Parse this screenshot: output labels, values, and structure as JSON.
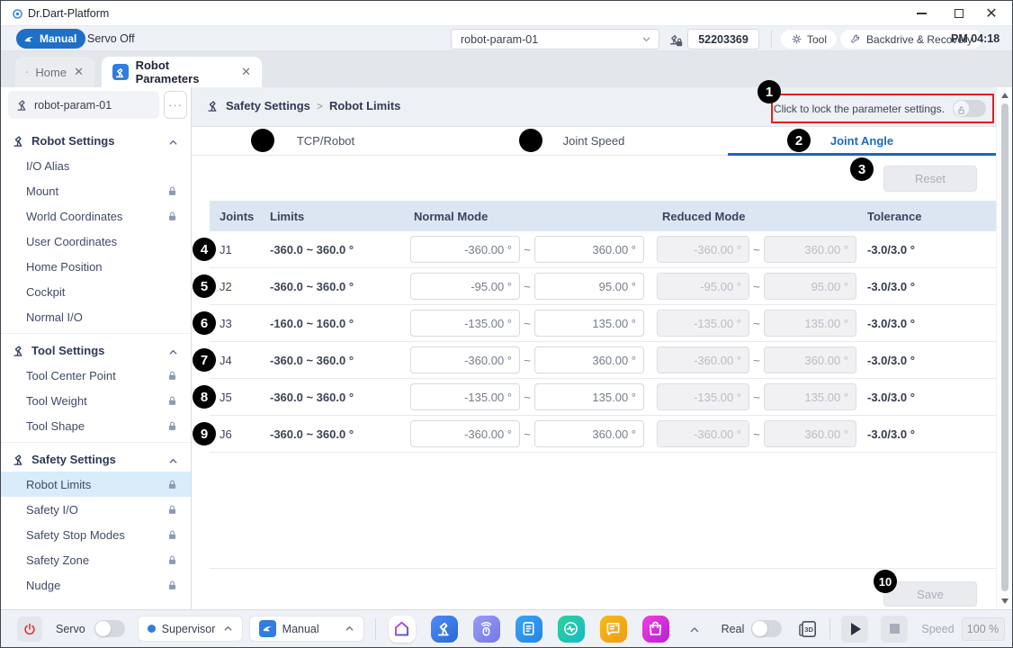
{
  "window": {
    "title": "Dr.Dart-Platform"
  },
  "toolbar": {
    "manual_label": "Manual",
    "servo_status": "Servo Off",
    "param_select": "robot-param-01",
    "serial": "52203369",
    "tool_label": "Tool",
    "backdrive_label": "Backdrive & Recovery",
    "time": "PM 04:18"
  },
  "app_tabs": [
    {
      "label": "Home",
      "active": false
    },
    {
      "label": "Robot Parameters",
      "active": true
    }
  ],
  "sidebar": {
    "param_name": "robot-param-01",
    "sections": [
      {
        "title": "Robot Settings",
        "items": [
          {
            "label": "I/O Alias",
            "locked": false,
            "selected": false
          },
          {
            "label": "Mount",
            "locked": true,
            "selected": false
          },
          {
            "label": "World Coordinates",
            "locked": true,
            "selected": false
          },
          {
            "label": "User Coordinates",
            "locked": false,
            "selected": false
          },
          {
            "label": "Home Position",
            "locked": false,
            "selected": false
          },
          {
            "label": "Cockpit",
            "locked": false,
            "selected": false
          },
          {
            "label": "Normal I/O",
            "locked": false,
            "selected": false
          }
        ]
      },
      {
        "title": "Tool Settings",
        "items": [
          {
            "label": "Tool Center Point",
            "locked": true,
            "selected": false
          },
          {
            "label": "Tool Weight",
            "locked": true,
            "selected": false
          },
          {
            "label": "Tool Shape",
            "locked": true,
            "selected": false
          }
        ]
      },
      {
        "title": "Safety Settings",
        "items": [
          {
            "label": "Robot Limits",
            "locked": true,
            "selected": true
          },
          {
            "label": "Safety I/O",
            "locked": true,
            "selected": false
          },
          {
            "label": "Safety Stop Modes",
            "locked": true,
            "selected": false
          },
          {
            "label": "Safety Zone",
            "locked": true,
            "selected": false
          },
          {
            "label": "Nudge",
            "locked": true,
            "selected": false
          }
        ]
      }
    ]
  },
  "main": {
    "breadcrumb": {
      "section": "Safety Settings",
      "separator": ">",
      "page": "Robot Limits"
    },
    "lock_callout": "Click to lock the parameter settings.",
    "tabs": [
      "TCP/Robot",
      "Joint Speed",
      "Joint Angle"
    ],
    "active_tab_index": 2,
    "reset_label": "Reset",
    "save_label": "Save",
    "table": {
      "headers": [
        "Joints",
        "Limits",
        "Normal Mode",
        "Reduced Mode",
        "Tolerance"
      ],
      "range_separator": "~",
      "rows": [
        {
          "joint": "J1",
          "limits": "-360.0 ~ 360.0 °",
          "normal_min": "-360.00 °",
          "normal_max": "360.00 °",
          "reduced_min": "-360.00 °",
          "reduced_max": "360.00 °",
          "tolerance": "-3.0/3.0 °"
        },
        {
          "joint": "J2",
          "limits": "-360.0 ~ 360.0 °",
          "normal_min": "-95.00 °",
          "normal_max": "95.00 °",
          "reduced_min": "-95.00 °",
          "reduced_max": "95.00 °",
          "tolerance": "-3.0/3.0 °"
        },
        {
          "joint": "J3",
          "limits": "-160.0 ~ 160.0 °",
          "normal_min": "-135.00 °",
          "normal_max": "135.00 °",
          "reduced_min": "-135.00 °",
          "reduced_max": "135.00 °",
          "tolerance": "-3.0/3.0 °"
        },
        {
          "joint": "J4",
          "limits": "-360.0 ~ 360.0 °",
          "normal_min": "-360.00 °",
          "normal_max": "360.00 °",
          "reduced_min": "-360.00 °",
          "reduced_max": "360.00 °",
          "tolerance": "-3.0/3.0 °"
        },
        {
          "joint": "J5",
          "limits": "-360.0 ~ 360.0 °",
          "normal_min": "-135.00 °",
          "normal_max": "135.00 °",
          "reduced_min": "-135.00 °",
          "reduced_max": "135.00 °",
          "tolerance": "-3.0/3.0 °"
        },
        {
          "joint": "J6",
          "limits": "-360.0 ~ 360.0 °",
          "normal_min": "-360.00 °",
          "normal_max": "360.00 °",
          "reduced_min": "-360.00 °",
          "reduced_max": "360.00 °",
          "tolerance": "-3.0/3.0 °"
        }
      ]
    }
  },
  "annotations": [
    "1",
    "2",
    "3",
    "4",
    "5",
    "6",
    "7",
    "8",
    "9",
    "10"
  ],
  "bottom_bar": {
    "servo_label": "Servo",
    "role_select": "Supervisor",
    "mode_select": "Manual",
    "real_label": "Real",
    "speed_label": "Speed",
    "speed_value": "100 %",
    "dock_icons": [
      "home",
      "robot",
      "jog",
      "task",
      "mon",
      "msg",
      "store"
    ]
  },
  "colors": {
    "accent_blue": "#1e6fc8",
    "callout_red": "#e8201e",
    "selected_item_bg": "#d9ecfa",
    "table_header_bg": "#dce5f2"
  }
}
